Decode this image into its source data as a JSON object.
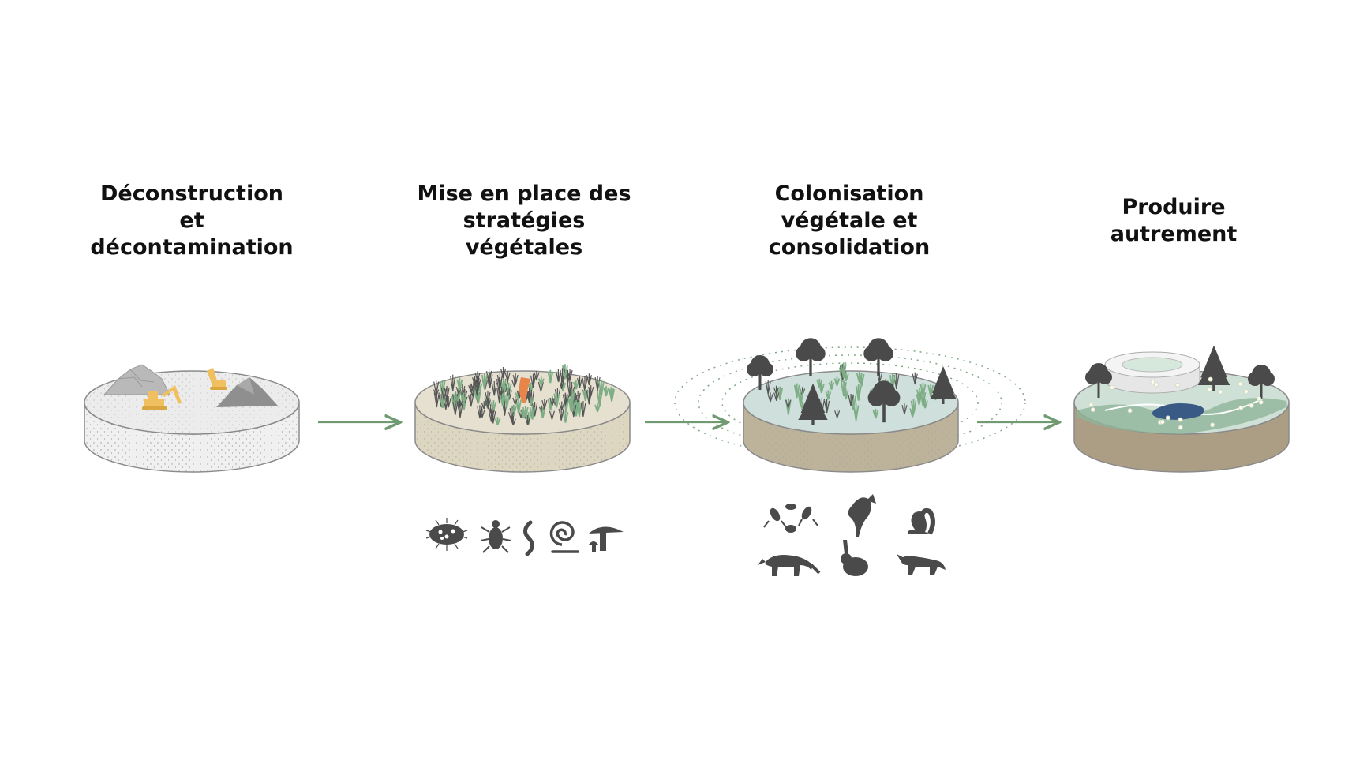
{
  "stages": [
    {
      "title": "Déconstruction\net\ndécontamination",
      "icons": []
    },
    {
      "title": "Mise en place des\nstratégies\nvégétales",
      "icons": [
        "microbe-icon",
        "beetle-icon",
        "worm-icon",
        "snail-icon",
        "mushroom-icon"
      ]
    },
    {
      "title": "Colonisation\nvégétale et\nconsolidation",
      "icons": [
        "insects-icon",
        "bird-icon",
        "squirrel-icon",
        "raccoon-icon",
        "rabbit-icon",
        "fox-icon"
      ]
    },
    {
      "title": "Produire\nautrement",
      "icons": []
    }
  ],
  "colors": {
    "arrow": "#6f9a72",
    "stage1_top": "#ececec",
    "stage1_side": "#f0f0f0",
    "stage2_top": "#e5e0cf",
    "stage2_side": "#ddd6c0",
    "stage3_top": "#cfe0dc",
    "stage3_side": "#bdb29a",
    "stage4_top": "#cfe0d6",
    "stage4_side": "#ab9e85",
    "silhouette": "#4a4a4a",
    "excavator": "#f0c060",
    "accent_orange": "#e8854a"
  }
}
